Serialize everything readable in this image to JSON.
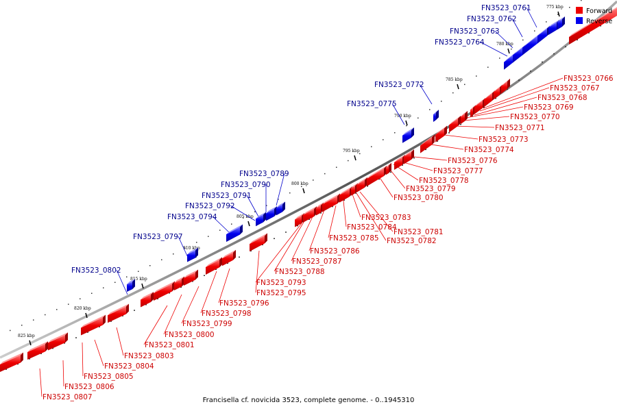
{
  "caption": "Francisella cf. novicida 3523, complete genome. - 0..1945310",
  "legend": {
    "forward": {
      "label": "Forward",
      "color": "#ee0000"
    },
    "reverse": {
      "label": "Reverse",
      "color": "#0000ee"
    }
  },
  "kbp_labels": [
    "775 kbp",
    "780 kbp",
    "785 kbp",
    "790 kbp",
    "795 kbp",
    "800 kbp",
    "805 kbp",
    "810 kbp",
    "815 kbp",
    "820 kbp",
    "825 kbp"
  ],
  "forward_genes": [
    "FN3523_0766",
    "FN3523_0767",
    "FN3523_0768",
    "FN3523_0769",
    "FN3523_0770",
    "FN3523_0771",
    "FN3523_0773",
    "FN3523_0774",
    "FN3523_0776",
    "FN3523_0777",
    "FN3523_0778",
    "FN3523_0779",
    "FN3523_0780",
    "FN3523_0781",
    "FN3523_0782",
    "FN3523_0783",
    "FN3523_0784",
    "FN3523_0785",
    "FN3523_0786",
    "FN3523_0787",
    "FN3523_0788",
    "FN3523_0793",
    "FN3523_0795",
    "FN3523_0796",
    "FN3523_0798",
    "FN3523_0799",
    "FN3523_0800",
    "FN3523_0801",
    "FN3523_0803",
    "FN3523_0804",
    "FN3523_0805",
    "FN3523_0806",
    "FN3523_0807"
  ],
  "reverse_genes": [
    "FN3523_0761",
    "FN3523_0762",
    "FN3523_0763",
    "FN3523_0764",
    "FN3523_0772",
    "FN3523_0775",
    "FN3523_0789",
    "FN3523_0790",
    "FN3523_0791",
    "FN3523_0792",
    "FN3523_0794",
    "FN3523_0797",
    "FN3523_0802"
  ]
}
